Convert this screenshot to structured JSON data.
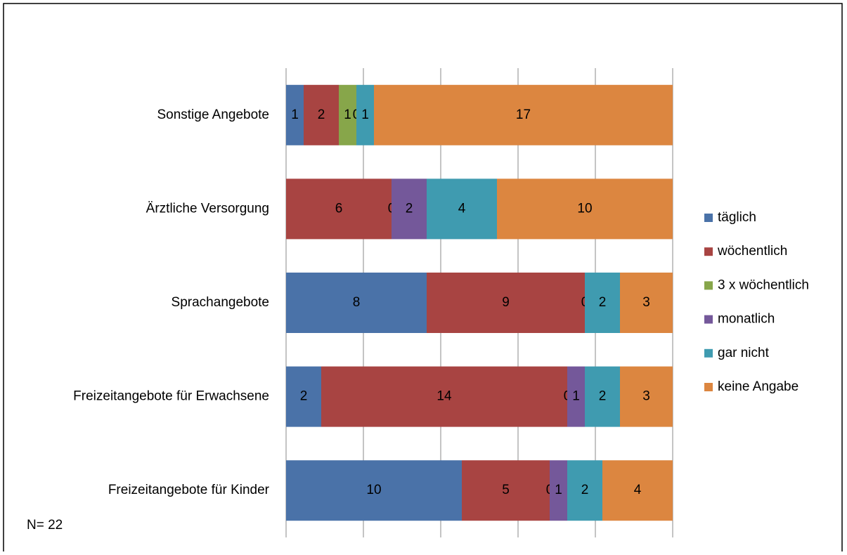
{
  "chart_data": {
    "type": "stacked-bar-horizontal",
    "categories": [
      "Sonstige Angebote",
      "Ärztliche Versorgung",
      "Sprachangebote",
      "Freizeitangebote für Erwachsene",
      "Freizeitangebote für Kinder"
    ],
    "series": [
      {
        "name": "täglich",
        "color": "#4a72a8",
        "values": [
          1,
          null,
          8,
          2,
          10
        ]
      },
      {
        "name": "wöchentlich",
        "color": "#a84442",
        "values": [
          2,
          6,
          9,
          14,
          5
        ]
      },
      {
        "name": "3 x wöchentlich",
        "color": "#87a64a",
        "values": [
          1,
          0,
          0,
          0,
          0
        ]
      },
      {
        "name": "monatlich",
        "color": "#74589a",
        "values": [
          0,
          2,
          null,
          1,
          1
        ]
      },
      {
        "name": "gar nicht",
        "color": "#3f9bb0",
        "values": [
          1,
          4,
          2,
          2,
          2
        ]
      },
      {
        "name": "keine Angabe",
        "color": "#dc8640",
        "values": [
          17,
          10,
          3,
          3,
          4
        ]
      }
    ],
    "xlim": [
      0,
      22
    ],
    "note": "N= 22",
    "legend": "right"
  }
}
